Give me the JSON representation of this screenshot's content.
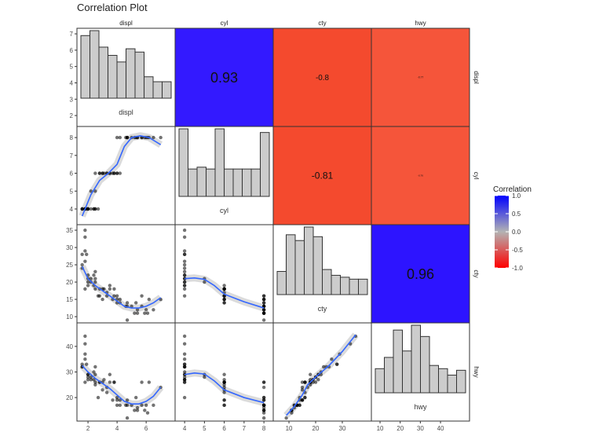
{
  "chart_data": {
    "type": "scatter-matrix",
    "title": "Correlation Plot",
    "variables": [
      "displ",
      "cyl",
      "cty",
      "hwy"
    ],
    "axes": {
      "displ": {
        "lim": [
          1.24,
          7.99
        ],
        "ylim": [
          1.33,
          7.34
        ],
        "xticks": [
          2,
          4,
          6
        ],
        "yticks": [
          2,
          3,
          4,
          5,
          6,
          7
        ]
      },
      "cyl": {
        "lim": [
          3.52,
          8.47
        ],
        "ylim": [
          3.12,
          8.62
        ],
        "xticks": [
          4,
          5,
          6,
          7,
          8
        ],
        "yticks": [
          4,
          5,
          6,
          7,
          8
        ]
      },
      "cty": {
        "lim": [
          4.1,
          40.9
        ],
        "ylim": [
          8.2,
          36.6
        ],
        "xticks": [
          10,
          20,
          30
        ],
        "yticks": [
          10,
          15,
          20,
          25,
          30,
          35
        ]
      },
      "hwy": {
        "lim": [
          5.7,
          54.4
        ],
        "ylim": [
          10.8,
          49.2
        ],
        "xticks": [
          10,
          20,
          30,
          40
        ],
        "yticks": [
          20,
          30,
          40
        ]
      }
    },
    "correlations": [
      {
        "row": "displ",
        "col": "cyl",
        "value": 0.93,
        "label": "0.93",
        "color": "#3319ff"
      },
      {
        "row": "displ",
        "col": "cty",
        "value": -0.8,
        "label": "-0.8",
        "color": "#f44a2e"
      },
      {
        "row": "displ",
        "col": "hwy",
        "value": -0.77,
        "label": "-0.77",
        "color": "#f5553a"
      },
      {
        "row": "cyl",
        "col": "cty",
        "value": -0.81,
        "label": "-0.81",
        "color": "#f44a2e"
      },
      {
        "row": "cyl",
        "col": "hwy",
        "value": -0.76,
        "label": "-0.76",
        "color": "#f5553a"
      },
      {
        "row": "cty",
        "col": "hwy",
        "value": 0.96,
        "label": "0.96",
        "color": "#2d14ff"
      }
    ],
    "histograms": {
      "displ": [
        38,
        41,
        31,
        26,
        22,
        30,
        28,
        13,
        10,
        10
      ],
      "cyl": [
        37,
        15,
        16,
        15,
        37,
        15,
        15,
        15,
        15,
        35
      ],
      "cty": [
        12,
        31,
        28,
        35,
        30,
        13,
        10,
        9,
        8,
        8
      ],
      "hwy": [
        15,
        22,
        39,
        26,
        42,
        35,
        17,
        15,
        11,
        14
      ]
    },
    "points": [
      [
        1.6,
        4,
        28,
        33
      ],
      [
        1.6,
        4,
        24,
        32
      ],
      [
        1.6,
        4,
        25,
        32
      ],
      [
        1.8,
        4,
        26,
        35
      ],
      [
        1.8,
        4,
        35,
        44
      ],
      [
        1.8,
        4,
        33,
        41
      ],
      [
        1.8,
        4,
        29,
        37
      ],
      [
        1.9,
        4,
        28,
        33
      ],
      [
        2.0,
        4,
        21,
        29
      ],
      [
        2.0,
        4,
        22,
        29
      ],
      [
        2.0,
        4,
        20,
        28
      ],
      [
        2.2,
        4,
        21,
        27
      ],
      [
        2.4,
        4,
        19,
        27
      ],
      [
        2.4,
        4,
        22,
        30
      ],
      [
        2.5,
        4,
        20,
        26
      ],
      [
        2.5,
        4,
        23,
        32
      ],
      [
        2.5,
        6,
        18,
        25
      ],
      [
        2.7,
        4,
        16,
        20
      ],
      [
        2.8,
        6,
        16,
        26
      ],
      [
        2.8,
        6,
        18,
        26
      ],
      [
        3.0,
        6,
        18,
        26
      ],
      [
        3.1,
        6,
        18,
        27
      ],
      [
        3.3,
        6,
        17,
        24
      ],
      [
        3.3,
        6,
        16,
        22
      ],
      [
        3.5,
        6,
        19,
        26
      ],
      [
        3.5,
        6,
        18,
        29
      ],
      [
        3.8,
        6,
        16,
        26
      ],
      [
        3.8,
        6,
        18,
        26
      ],
      [
        4.0,
        6,
        15,
        19
      ],
      [
        4.0,
        6,
        14,
        17
      ],
      [
        4.0,
        8,
        16,
        20
      ],
      [
        4.2,
        6,
        14,
        17
      ],
      [
        4.2,
        8,
        15,
        19
      ],
      [
        4.6,
        8,
        13,
        17
      ],
      [
        4.7,
        8,
        9,
        12
      ],
      [
        4.7,
        8,
        13,
        17
      ],
      [
        4.7,
        8,
        14,
        19
      ],
      [
        5.0,
        8,
        13,
        17
      ],
      [
        5.2,
        8,
        11,
        15
      ],
      [
        5.3,
        8,
        14,
        20
      ],
      [
        5.4,
        8,
        11,
        15
      ],
      [
        5.4,
        8,
        12,
        16
      ],
      [
        5.7,
        8,
        13,
        17
      ],
      [
        5.7,
        8,
        16,
        26
      ],
      [
        5.9,
        8,
        11,
        15
      ],
      [
        6.0,
        8,
        12,
        17
      ],
      [
        6.1,
        8,
        11,
        14
      ],
      [
        6.2,
        8,
        15,
        26
      ],
      [
        6.5,
        8,
        12,
        17
      ],
      [
        7.0,
        8,
        15,
        24
      ],
      [
        2.2,
        5,
        20,
        28
      ],
      [
        2.5,
        5,
        21,
        29
      ],
      [
        1.8,
        4,
        18,
        26
      ],
      [
        2.0,
        4,
        19,
        27
      ],
      [
        3.0,
        6,
        15,
        23
      ],
      [
        3.7,
        6,
        15,
        19
      ]
    ],
    "smooth": {
      "cyl~displ": [
        [
          1.6,
          3.6
        ],
        [
          2.2,
          4.8
        ],
        [
          2.8,
          5.6
        ],
        [
          3.4,
          6.0
        ],
        [
          4.0,
          6.5
        ],
        [
          4.5,
          7.5
        ],
        [
          5.0,
          8.0
        ],
        [
          5.6,
          8.1
        ],
        [
          6.2,
          8.0
        ],
        [
          7.0,
          7.6
        ]
      ],
      "cty~displ": [
        [
          1.6,
          24.5
        ],
        [
          2,
          21
        ],
        [
          2.5,
          19
        ],
        [
          3,
          17.5
        ],
        [
          3.5,
          16
        ],
        [
          4,
          14.5
        ],
        [
          4.5,
          13
        ],
        [
          5,
          12.5
        ],
        [
          5.5,
          12.5
        ],
        [
          6,
          13
        ],
        [
          6.5,
          14
        ],
        [
          7,
          15.5
        ]
      ],
      "cty~cyl": [
        [
          4,
          21
        ],
        [
          4.5,
          21.2
        ],
        [
          5,
          20.8
        ],
        [
          5.5,
          19
        ],
        [
          6,
          16.5
        ],
        [
          7,
          14.3
        ],
        [
          8,
          12.5
        ]
      ],
      "hwy~displ": [
        [
          1.6,
          32.5
        ],
        [
          2,
          30
        ],
        [
          2.5,
          27.5
        ],
        [
          3,
          25.5
        ],
        [
          3.5,
          23.5
        ],
        [
          4,
          21
        ],
        [
          4.5,
          18.5
        ],
        [
          5,
          17.5
        ],
        [
          5.5,
          17.5
        ],
        [
          6,
          18.5
        ],
        [
          6.5,
          20.5
        ],
        [
          7,
          24
        ]
      ],
      "hwy~cyl": [
        [
          4,
          29
        ],
        [
          4.5,
          29.6
        ],
        [
          5,
          29.2
        ],
        [
          5.5,
          26.5
        ],
        [
          6,
          23
        ],
        [
          7,
          20
        ],
        [
          8,
          18
        ]
      ],
      "hwy~cty": [
        [
          9,
          13
        ],
        [
          12,
          16.5
        ],
        [
          15,
          21
        ],
        [
          17,
          25
        ],
        [
          20,
          28
        ],
        [
          25,
          32.5
        ],
        [
          30,
          38
        ],
        [
          35,
          44.5
        ]
      ]
    },
    "smooth_color": "#3366ff",
    "histogram_fill": "#cccccc",
    "legend": {
      "title": "Correlation",
      "ticks": [
        "1.0",
        "0.5",
        "0.0",
        "-0.5",
        "-1.0"
      ],
      "colors": {
        "high": "#0000ff",
        "mid": "#b3b3b3",
        "low": "#ff0000"
      },
      "placement": "right"
    }
  }
}
